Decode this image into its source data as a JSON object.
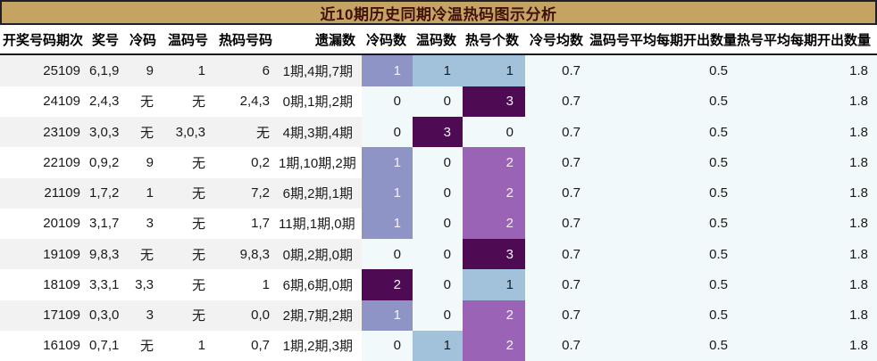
{
  "title_bar": {
    "title": "近10期历史同期冷温热码图示分析"
  },
  "chart_data": {
    "type": "heatmap",
    "title": "近10期历史同期冷温热码图示分析",
    "columns": [
      "开奖号码期次",
      "奖号",
      "冷码",
      "温码号",
      "热码号码",
      "遗漏数",
      "冷码数",
      "温码数",
      "热号个数",
      "冷号均数",
      "温码号平均每期开出数量",
      "热号平均每期开出数量"
    ],
    "col_types": [
      "plain",
      "plain",
      "plain",
      "plain",
      "plain",
      "plain",
      "heat",
      "heat",
      "heat",
      "avg",
      "avg",
      "avg"
    ],
    "heatmap_columns": [
      "冷码数",
      "温码数",
      "热号个数"
    ],
    "rows": [
      [
        "25109",
        "6,1,9",
        "9",
        "1",
        "6",
        "1期,4期,7期",
        1,
        1,
        1,
        "0.7",
        "0.5",
        "1.8"
      ],
      [
        "24109",
        "2,4,3",
        "无",
        "无",
        "2,4,3",
        "0期,1期,2期",
        0,
        0,
        3,
        "0.7",
        "0.5",
        "1.8"
      ],
      [
        "23109",
        "3,0,3",
        "无",
        "3,0,3",
        "无",
        "4期,3期,4期",
        0,
        3,
        0,
        "0.7",
        "0.5",
        "1.8"
      ],
      [
        "22109",
        "0,9,2",
        "9",
        "无",
        "0,2",
        "1期,10期,2期",
        1,
        0,
        2,
        "0.7",
        "0.5",
        "1.8"
      ],
      [
        "21109",
        "1,7,2",
        "1",
        "无",
        "7,2",
        "6期,2期,1期",
        1,
        0,
        2,
        "0.7",
        "0.5",
        "1.8"
      ],
      [
        "20109",
        "3,1,7",
        "3",
        "无",
        "1,7",
        "11期,1期,0期",
        1,
        0,
        2,
        "0.7",
        "0.5",
        "1.8"
      ],
      [
        "19109",
        "9,8,3",
        "无",
        "无",
        "9,8,3",
        "0期,2期,0期",
        0,
        0,
        3,
        "0.7",
        "0.5",
        "1.8"
      ],
      [
        "18109",
        "3,3,1",
        "3,3",
        "无",
        "1",
        "6期,6期,0期",
        2,
        0,
        1,
        "0.7",
        "0.5",
        "1.8"
      ],
      [
        "17109",
        "0,3,0",
        "3",
        "无",
        "0,0",
        "2期,7期,2期",
        1,
        0,
        2,
        "0.7",
        "0.5",
        "1.8"
      ],
      [
        "16109",
        "0,7,1",
        "无",
        "1",
        "0,7",
        "1期,2期,3期",
        0,
        1,
        2,
        "0.7",
        "0.5",
        "1.8"
      ]
    ],
    "heat_scale_colors": [
      "#f2f9fa",
      "#a2c2dc",
      "#8f94c6",
      "#9a63b6",
      "#4e0a52"
    ],
    "legend": "none",
    "grid": false
  },
  "colors": {
    "title_bg": "#c5a363",
    "title_text": "#40120a",
    "title_border": "#20202a",
    "stripe_row": "#f2f2f2",
    "even_row": "#ffffff",
    "avg_cell_bg": "#f2f9fa",
    "header_rule": "#1a1a1a",
    "body_text": "#1a1a1a",
    "heat_text_light": "#f6f2f7"
  }
}
